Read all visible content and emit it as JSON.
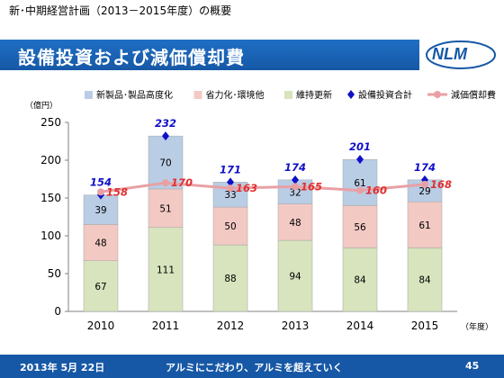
{
  "header": {
    "subtitle": "新･中期経営計画（2013－2015年度）の概要",
    "title": "設備投資および減価償却費",
    "logo_text": "NLM"
  },
  "footer": {
    "date": "2013年 5月 22日",
    "slogan": "アルミにこだわり、アルミを超えていく",
    "page": "45"
  },
  "chart_data": {
    "type": "bar",
    "stacked": true,
    "categories": [
      "2010",
      "2011",
      "2012",
      "2013",
      "2014",
      "2015"
    ],
    "y_unit": "（億円）",
    "x_unit": "（年度）",
    "ylim": [
      0,
      250
    ],
    "yticks": [
      0,
      50,
      100,
      150,
      200,
      250
    ],
    "series": [
      {
        "name": "維持更新",
        "values": [
          67,
          111,
          88,
          94,
          84,
          84
        ],
        "color": "#d7e4bd"
      },
      {
        "name": "省力化･環境他",
        "values": [
          48,
          51,
          50,
          48,
          56,
          61
        ],
        "color": "#f2c9c3"
      },
      {
        "name": "新製品･製品高度化",
        "values": [
          39,
          70,
          33,
          32,
          61,
          29
        ],
        "color": "#b9cde5"
      }
    ],
    "lines": [
      {
        "name": "設備投資合計",
        "values": [
          154,
          232,
          171,
          174,
          201,
          174
        ],
        "color": "#1010c8",
        "marker": "diamond",
        "show_line": false
      },
      {
        "name": "減価償却費",
        "values": [
          158,
          170,
          163,
          165,
          160,
          168
        ],
        "color": "#e8a0a4",
        "marker": "circle",
        "show_line": true
      }
    ],
    "legend_position": "top",
    "grid": false
  }
}
